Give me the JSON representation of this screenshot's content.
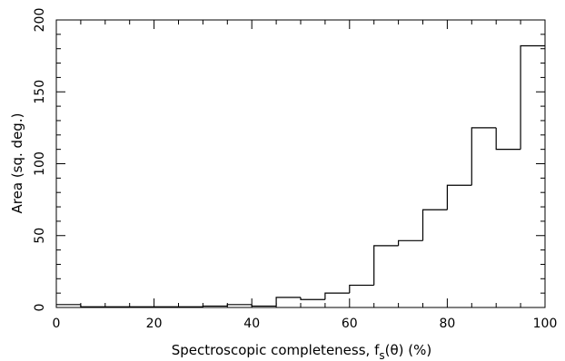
{
  "chart_data": {
    "type": "bar",
    "style": "step-histogram",
    "bin_edges": [
      0,
      5,
      10,
      15,
      20,
      25,
      30,
      35,
      40,
      45,
      50,
      55,
      60,
      65,
      70,
      75,
      80,
      85,
      90,
      95,
      100
    ],
    "values": [
      2,
      0.5,
      0.5,
      0.5,
      0.5,
      0.5,
      1,
      2,
      1,
      7,
      5.5,
      10,
      15.5,
      43,
      46.5,
      68,
      85,
      125,
      110,
      182
    ],
    "xlim": [
      0,
      100
    ],
    "ylim": [
      0,
      200
    ],
    "x_ticks": [
      "0",
      "20",
      "40",
      "60",
      "80",
      "100"
    ],
    "y_ticks": [
      "0",
      "50",
      "100",
      "150",
      "200"
    ],
    "xlabel": "Spectroscopic completeness, f",
    "xlabel_sub": "s",
    "xlabel_tail": "(θ) (%)",
    "ylabel": "Area (sq. deg.)",
    "grid": false,
    "mirror_ticks": true,
    "line_color": "#000000"
  }
}
